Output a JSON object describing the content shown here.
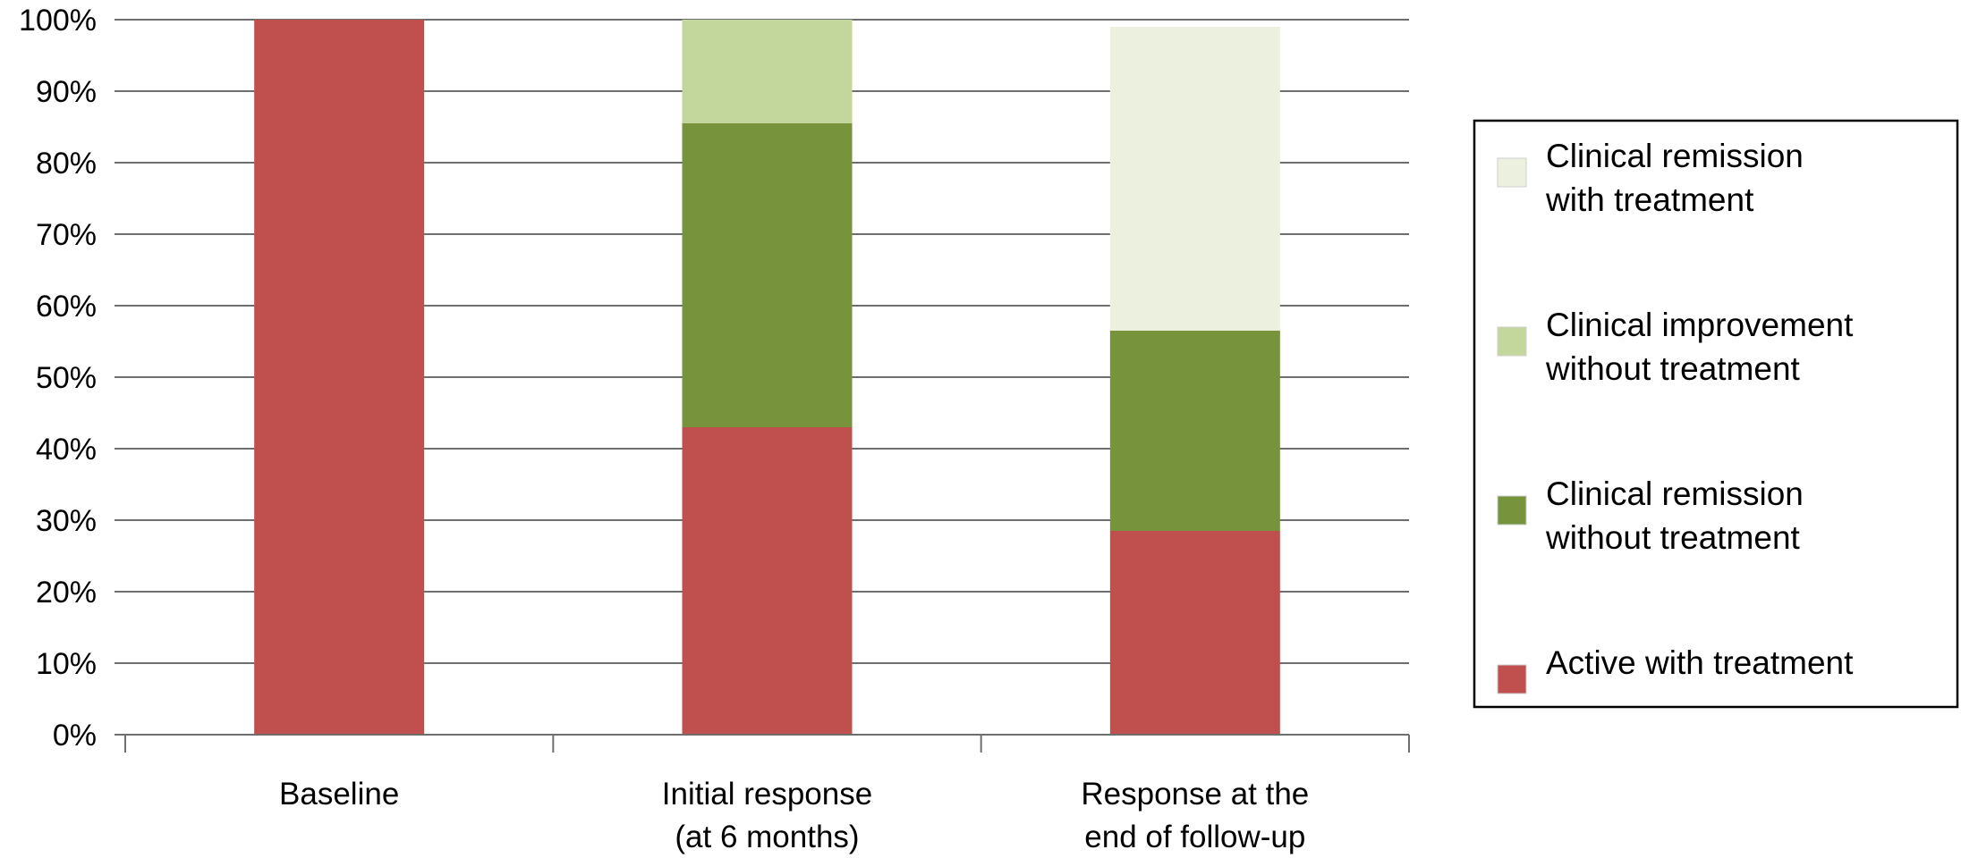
{
  "chart_data": {
    "type": "bar",
    "stacked": true,
    "percent": true,
    "title": "",
    "xlabel": "",
    "ylabel": "",
    "ylim": [
      0,
      100
    ],
    "yticks": [
      "0%",
      "10%",
      "20%",
      "30%",
      "40%",
      "50%",
      "60%",
      "70%",
      "80%",
      "90%",
      "100%"
    ],
    "grid": true,
    "legend_position": "right",
    "categories": [
      [
        "Baseline"
      ],
      [
        "Initial response",
        "(at 6 months)"
      ],
      [
        "Response at the",
        "end of follow-up"
      ]
    ],
    "series": [
      {
        "name": [
          "Active with treatment"
        ],
        "color": "#c0504d",
        "values": [
          100,
          43,
          28.5
        ]
      },
      {
        "name": [
          "Clinical remission",
          "without treatment"
        ],
        "color": "#77933c",
        "values": [
          0,
          42.5,
          28
        ]
      },
      {
        "name": [
          "Clinical improvement",
          "without treatment"
        ],
        "color": "#c3d69b",
        "values": [
          0,
          14.5,
          0
        ]
      },
      {
        "name": [
          "Clinical remission",
          "with treatment"
        ],
        "color": "#ebf1de",
        "values": [
          0,
          0,
          42.5
        ]
      }
    ],
    "legend_order": [
      3,
      2,
      1,
      0
    ]
  }
}
